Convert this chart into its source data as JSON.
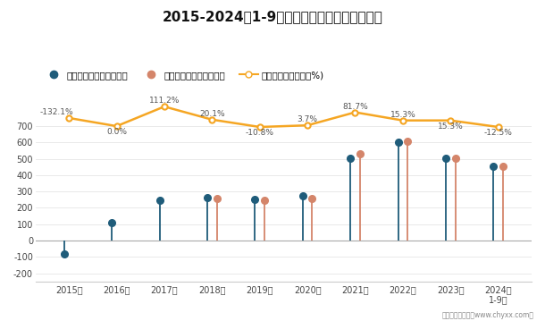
{
  "title": "2015-2024年1-9月甘肃省工业企业利润统计图",
  "years": [
    "2015年",
    "2016年",
    "2017年",
    "2018年",
    "2019年",
    "2020年",
    "2021年",
    "2022年",
    "2023年",
    "2024年\n1-9月"
  ],
  "x_positions": [
    0,
    1,
    2,
    3,
    4,
    5,
    6,
    7,
    8,
    9
  ],
  "profit_total": [
    -80,
    110,
    245,
    265,
    250,
    275,
    505,
    600,
    505,
    455
  ],
  "profit_operating": [
    null,
    null,
    null,
    255,
    245,
    255,
    530,
    605,
    505,
    455
  ],
  "growth_labels": [
    "-132.1%",
    "0.0%",
    "111.2%",
    "20.1%",
    "-10.8%",
    "3.7%",
    "81.7%",
    "15.3%",
    "15.3%",
    "-12.5%"
  ],
  "growth_label_va": [
    "bottom",
    "top",
    "bottom",
    "bottom",
    "top",
    "bottom",
    "bottom",
    "bottom",
    "top",
    "top"
  ],
  "growth_label_offset": [
    -0.25,
    0,
    0,
    0,
    0,
    0,
    0,
    0,
    0,
    0
  ],
  "color_total": "#1f5c7a",
  "color_operating": "#d4856a",
  "color_growth": "#f5a623",
  "legend_labels": [
    "利润总额累计值（亿元）",
    "营业利润累计值（亿元）",
    "利润总额累计增长（%)"
  ],
  "footnote": "制图：智研咨询（www.chyxx.com）",
  "ylim": [
    -250,
    850
  ],
  "yticks": [
    -200,
    -100,
    0,
    100,
    200,
    300,
    400,
    500,
    600,
    700
  ],
  "background_color": "#ffffff",
  "growth_y_mapped": [
    750,
    700,
    820,
    740,
    695,
    705,
    785,
    735,
    735,
    695
  ],
  "growth_label_y_mapped": [
    760,
    690,
    830,
    750,
    685,
    715,
    795,
    745,
    725,
    685
  ]
}
